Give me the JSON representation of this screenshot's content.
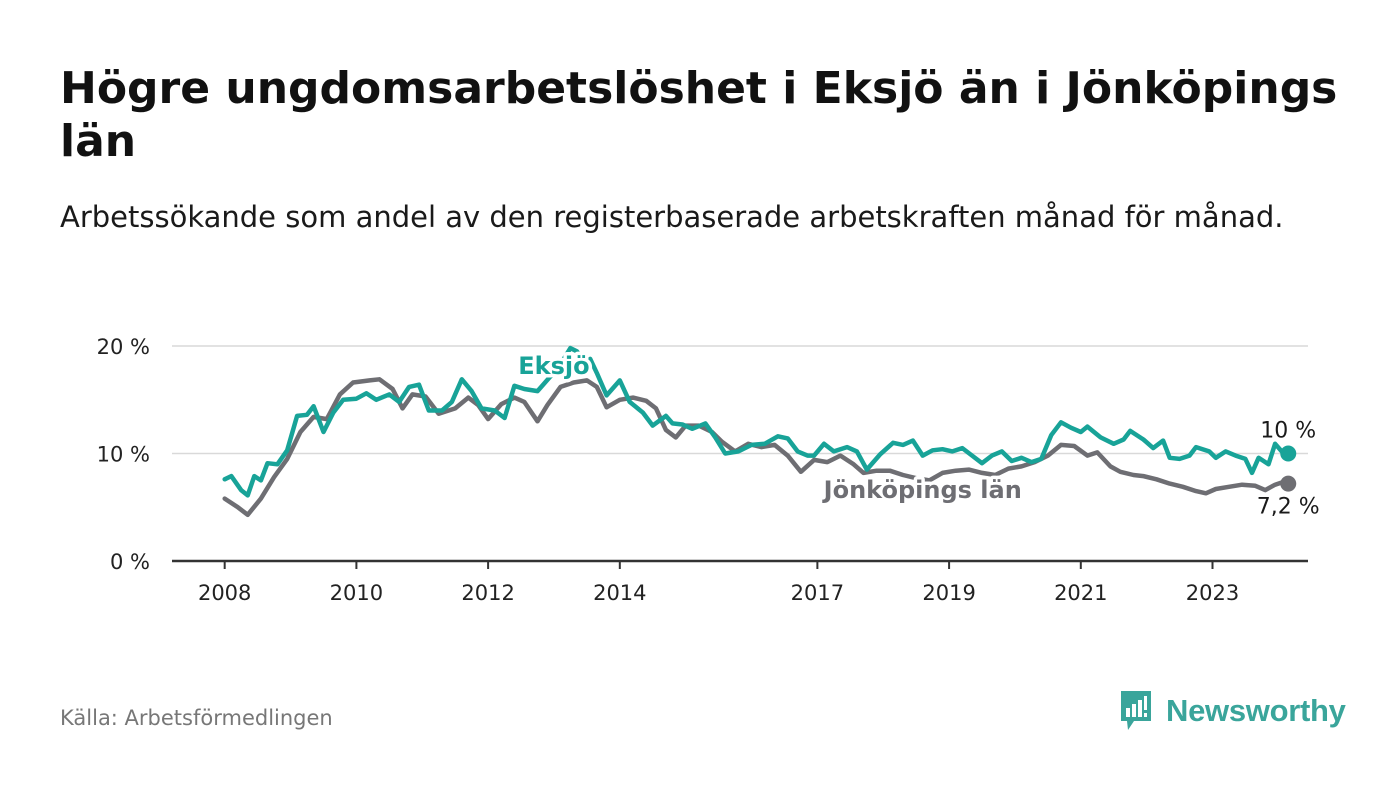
{
  "title": "Högre ungdomsarbetslöshet i Eksjö än i Jönköpings län",
  "subtitle": "Arbetssökande som andel av den registerbaserade arbetskraften månad för månad.",
  "source": "Källa: Arbetsförmedlingen",
  "brand": "Newsworthy",
  "colors": {
    "eksjo": "#18a398",
    "lan": "#6e6e73",
    "grid": "#d9d9d9",
    "axis": "#333333",
    "brand": "#3aa59b"
  },
  "chart_data": {
    "type": "line",
    "title": "Högre ungdomsarbetslöshet i Eksjö än i Jönköpings län",
    "xlabel": "",
    "ylabel": "",
    "ylim": [
      0,
      20
    ],
    "yticks": [
      {
        "value": 0,
        "label": "0 %"
      },
      {
        "value": 10,
        "label": "10 %"
      },
      {
        "value": 20,
        "label": "20 %"
      }
    ],
    "xlim": [
      2007.2,
      2024.45
    ],
    "xticks": [
      {
        "value": 2008,
        "label": "2008"
      },
      {
        "value": 2010,
        "label": "2010"
      },
      {
        "value": 2012,
        "label": "2012"
      },
      {
        "value": 2014,
        "label": "2014"
      },
      {
        "value": 2017,
        "label": "2017"
      },
      {
        "value": 2019,
        "label": "2019"
      },
      {
        "value": 2021,
        "label": "2021"
      },
      {
        "value": 2023,
        "label": "2023"
      }
    ],
    "grid": true,
    "series": [
      {
        "name": "Jönköpings län",
        "label": "Jönköpings län",
        "end_label": "7,2 %",
        "color": "#6e6e73",
        "points": [
          [
            2008.0,
            5.8
          ],
          [
            2008.2,
            5.0
          ],
          [
            2008.35,
            4.3
          ],
          [
            2008.55,
            5.8
          ],
          [
            2008.75,
            7.8
          ],
          [
            2008.95,
            9.5
          ],
          [
            2009.15,
            12.0
          ],
          [
            2009.35,
            13.4
          ],
          [
            2009.55,
            13.2
          ],
          [
            2009.75,
            15.5
          ],
          [
            2009.95,
            16.6
          ],
          [
            2010.2,
            16.8
          ],
          [
            2010.35,
            16.9
          ],
          [
            2010.55,
            16.0
          ],
          [
            2010.7,
            14.2
          ],
          [
            2010.85,
            15.5
          ],
          [
            2011.05,
            15.3
          ],
          [
            2011.25,
            13.7
          ],
          [
            2011.5,
            14.2
          ],
          [
            2011.7,
            15.2
          ],
          [
            2011.85,
            14.5
          ],
          [
            2012.0,
            13.2
          ],
          [
            2012.2,
            14.6
          ],
          [
            2012.4,
            15.2
          ],
          [
            2012.55,
            14.8
          ],
          [
            2012.75,
            13.0
          ],
          [
            2012.9,
            14.5
          ],
          [
            2013.1,
            16.2
          ],
          [
            2013.3,
            16.6
          ],
          [
            2013.5,
            16.8
          ],
          [
            2013.65,
            16.2
          ],
          [
            2013.8,
            14.3
          ],
          [
            2014.0,
            15.0
          ],
          [
            2014.2,
            15.2
          ],
          [
            2014.4,
            14.9
          ],
          [
            2014.55,
            14.2
          ],
          [
            2014.7,
            12.2
          ],
          [
            2014.85,
            11.5
          ],
          [
            2015.0,
            12.6
          ],
          [
            2015.2,
            12.6
          ],
          [
            2015.4,
            12.0
          ],
          [
            2015.55,
            11.1
          ],
          [
            2015.75,
            10.2
          ],
          [
            2015.95,
            10.9
          ],
          [
            2016.15,
            10.6
          ],
          [
            2016.35,
            10.8
          ],
          [
            2016.55,
            9.8
          ],
          [
            2016.75,
            8.3
          ],
          [
            2016.95,
            9.4
          ],
          [
            2017.15,
            9.2
          ],
          [
            2017.35,
            9.8
          ],
          [
            2017.55,
            9.0
          ],
          [
            2017.7,
            8.2
          ],
          [
            2017.9,
            8.4
          ],
          [
            2018.1,
            8.4
          ],
          [
            2018.3,
            8.0
          ],
          [
            2018.5,
            7.7
          ],
          [
            2018.7,
            7.5
          ],
          [
            2018.9,
            8.2
          ],
          [
            2019.1,
            8.4
          ],
          [
            2019.3,
            8.5
          ],
          [
            2019.5,
            8.2
          ],
          [
            2019.7,
            8.0
          ],
          [
            2019.9,
            8.6
          ],
          [
            2020.1,
            8.8
          ],
          [
            2020.3,
            9.2
          ],
          [
            2020.5,
            9.8
          ],
          [
            2020.7,
            10.8
          ],
          [
            2020.9,
            10.7
          ],
          [
            2021.1,
            9.8
          ],
          [
            2021.25,
            10.1
          ],
          [
            2021.45,
            8.8
          ],
          [
            2021.6,
            8.3
          ],
          [
            2021.8,
            8.0
          ],
          [
            2021.95,
            7.9
          ],
          [
            2022.15,
            7.6
          ],
          [
            2022.35,
            7.2
          ],
          [
            2022.55,
            6.9
          ],
          [
            2022.75,
            6.5
          ],
          [
            2022.9,
            6.3
          ],
          [
            2023.05,
            6.7
          ],
          [
            2023.25,
            6.9
          ],
          [
            2023.45,
            7.1
          ],
          [
            2023.65,
            7.0
          ],
          [
            2023.8,
            6.6
          ],
          [
            2023.95,
            7.1
          ],
          [
            2024.05,
            7.3
          ],
          [
            2024.15,
            7.2
          ]
        ]
      },
      {
        "name": "Eksjö",
        "label": "Eksjö",
        "end_label": "10 %",
        "color": "#18a398",
        "points": [
          [
            2008.0,
            7.6
          ],
          [
            2008.1,
            7.9
          ],
          [
            2008.25,
            6.6
          ],
          [
            2008.35,
            6.1
          ],
          [
            2008.45,
            7.9
          ],
          [
            2008.55,
            7.5
          ],
          [
            2008.65,
            9.1
          ],
          [
            2008.8,
            9.0
          ],
          [
            2008.95,
            10.3
          ],
          [
            2009.1,
            13.5
          ],
          [
            2009.25,
            13.6
          ],
          [
            2009.35,
            14.4
          ],
          [
            2009.5,
            12.0
          ],
          [
            2009.65,
            13.8
          ],
          [
            2009.8,
            15.0
          ],
          [
            2010.0,
            15.1
          ],
          [
            2010.15,
            15.6
          ],
          [
            2010.3,
            15.0
          ],
          [
            2010.5,
            15.5
          ],
          [
            2010.65,
            14.8
          ],
          [
            2010.8,
            16.2
          ],
          [
            2010.95,
            16.4
          ],
          [
            2011.1,
            14.0
          ],
          [
            2011.3,
            14.0
          ],
          [
            2011.45,
            14.8
          ],
          [
            2011.6,
            16.9
          ],
          [
            2011.75,
            15.8
          ],
          [
            2011.9,
            14.2
          ],
          [
            2012.1,
            14.0
          ],
          [
            2012.25,
            13.3
          ],
          [
            2012.4,
            16.3
          ],
          [
            2012.55,
            16.0
          ],
          [
            2012.75,
            15.8
          ],
          [
            2012.85,
            16.5
          ],
          [
            2012.95,
            17.2
          ],
          [
            2013.05,
            17.8
          ],
          [
            2013.15,
            18.8
          ],
          [
            2013.25,
            19.8
          ],
          [
            2013.35,
            19.5
          ],
          [
            2013.45,
            18.5
          ],
          [
            2013.55,
            18.8
          ],
          [
            2013.65,
            17.5
          ],
          [
            2013.8,
            15.4
          ],
          [
            2014.0,
            16.8
          ],
          [
            2014.15,
            14.8
          ],
          [
            2014.35,
            13.8
          ],
          [
            2014.5,
            12.6
          ],
          [
            2014.7,
            13.5
          ],
          [
            2014.8,
            12.8
          ],
          [
            2014.95,
            12.7
          ],
          [
            2015.1,
            12.3
          ],
          [
            2015.3,
            12.8
          ],
          [
            2015.45,
            11.5
          ],
          [
            2015.6,
            10.0
          ],
          [
            2015.8,
            10.2
          ],
          [
            2016.0,
            10.8
          ],
          [
            2016.2,
            10.9
          ],
          [
            2016.4,
            11.6
          ],
          [
            2016.55,
            11.4
          ],
          [
            2016.7,
            10.2
          ],
          [
            2016.85,
            9.8
          ],
          [
            2016.95,
            9.8
          ],
          [
            2017.1,
            10.9
          ],
          [
            2017.25,
            10.2
          ],
          [
            2017.45,
            10.6
          ],
          [
            2017.6,
            10.2
          ],
          [
            2017.75,
            8.5
          ],
          [
            2017.95,
            9.9
          ],
          [
            2018.15,
            11.0
          ],
          [
            2018.3,
            10.8
          ],
          [
            2018.45,
            11.2
          ],
          [
            2018.6,
            9.8
          ],
          [
            2018.75,
            10.3
          ],
          [
            2018.9,
            10.4
          ],
          [
            2019.05,
            10.2
          ],
          [
            2019.2,
            10.5
          ],
          [
            2019.35,
            9.8
          ],
          [
            2019.5,
            9.1
          ],
          [
            2019.65,
            9.8
          ],
          [
            2019.8,
            10.2
          ],
          [
            2019.95,
            9.3
          ],
          [
            2020.1,
            9.6
          ],
          [
            2020.25,
            9.2
          ],
          [
            2020.4,
            9.5
          ],
          [
            2020.55,
            11.7
          ],
          [
            2020.7,
            12.9
          ],
          [
            2020.85,
            12.4
          ],
          [
            2021.0,
            12.0
          ],
          [
            2021.1,
            12.5
          ],
          [
            2021.3,
            11.5
          ],
          [
            2021.5,
            10.9
          ],
          [
            2021.65,
            11.3
          ],
          [
            2021.75,
            12.1
          ],
          [
            2021.95,
            11.3
          ],
          [
            2022.1,
            10.5
          ],
          [
            2022.25,
            11.2
          ],
          [
            2022.35,
            9.6
          ],
          [
            2022.5,
            9.5
          ],
          [
            2022.65,
            9.8
          ],
          [
            2022.75,
            10.6
          ],
          [
            2022.95,
            10.2
          ],
          [
            2023.05,
            9.6
          ],
          [
            2023.2,
            10.2
          ],
          [
            2023.35,
            9.8
          ],
          [
            2023.5,
            9.5
          ],
          [
            2023.6,
            8.2
          ],
          [
            2023.7,
            9.6
          ],
          [
            2023.85,
            9.0
          ],
          [
            2023.95,
            10.9
          ],
          [
            2024.05,
            10.2
          ],
          [
            2024.15,
            10.0
          ]
        ]
      }
    ]
  }
}
